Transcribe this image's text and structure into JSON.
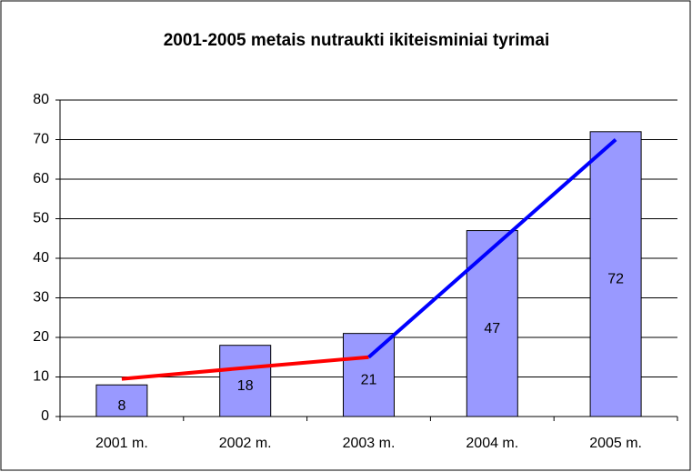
{
  "chart_data": {
    "type": "bar",
    "title": "2001-2005 metais nutraukti ikiteisminiai tyrimai",
    "categories": [
      "2001 m.",
      "2002 m.",
      "2003 m.",
      "2004 m.",
      "2005 m."
    ],
    "values": [
      8,
      18,
      21,
      47,
      72
    ],
    "color": "#9999ff",
    "ylim": [
      0,
      80
    ],
    "yticks": [
      0,
      10,
      20,
      30,
      40,
      50,
      60,
      70,
      80
    ],
    "grid": true,
    "series": [
      {
        "color": "#ff0000",
        "values": [
          9.5,
          12.3,
          15,
          null,
          null
        ]
      },
      {
        "color": "#0000ff",
        "values": [
          null,
          null,
          15,
          42.5,
          70
        ]
      }
    ]
  }
}
